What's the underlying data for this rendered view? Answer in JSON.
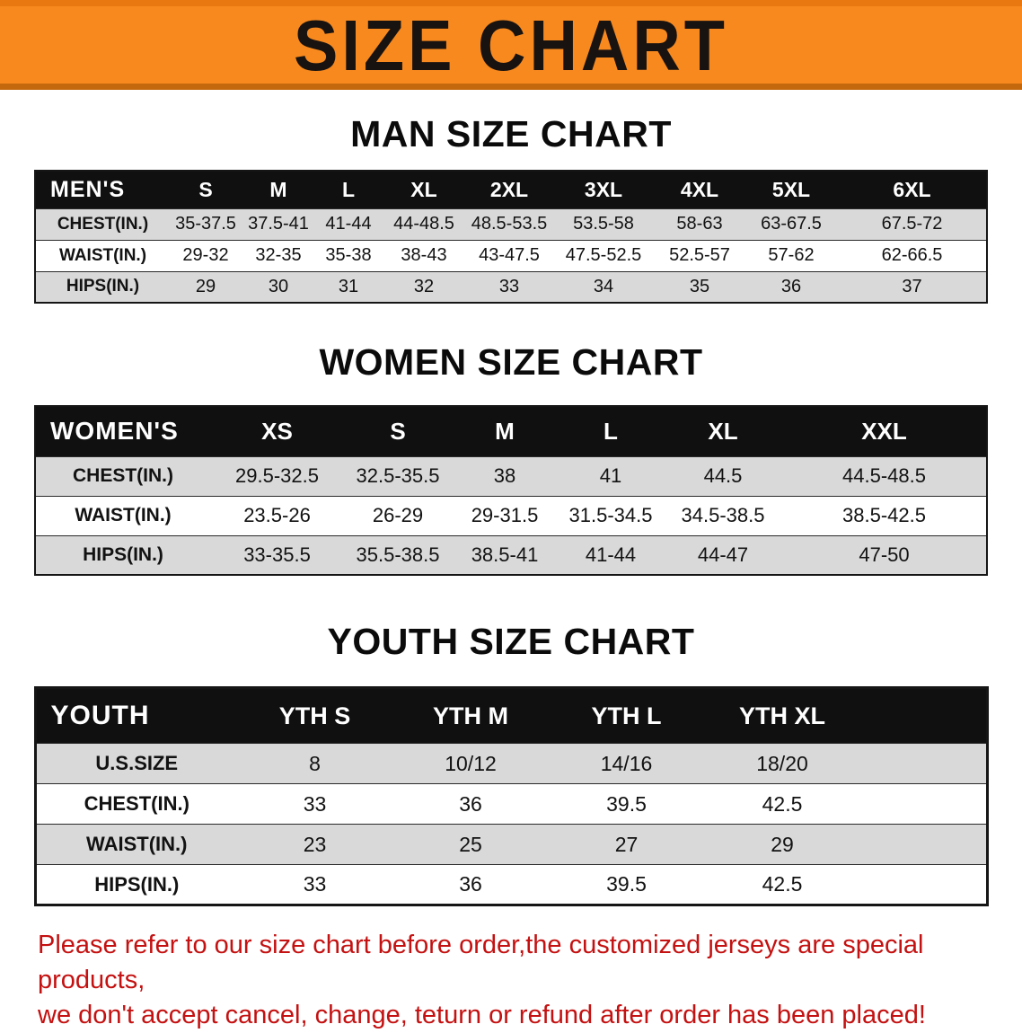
{
  "banner": {
    "title": "SIZE CHART"
  },
  "colors": {
    "banner_bg": "#f7891f",
    "banner_edge_top": "#e8780f",
    "banner_edge_bottom": "#c4680d",
    "table_header_bg": "#101010",
    "row_shade": "#d9d9d9",
    "disclaimer_red": "#c41111"
  },
  "chart_data": [
    {
      "type": "table",
      "title": "MAN SIZE CHART",
      "columns": [
        "MEN'S",
        "S",
        "M",
        "L",
        "XL",
        "2XL",
        "3XL",
        "4XL",
        "5XL",
        "6XL"
      ],
      "rows": [
        [
          "CHEST(IN.)",
          "35-37.5",
          "37.5-41",
          "41-44",
          "44-48.5",
          "48.5-53.5",
          "53.5-58",
          "58-63",
          "63-67.5",
          "67.5-72"
        ],
        [
          "WAIST(IN.)",
          "29-32",
          "32-35",
          "35-38",
          "38-43",
          "43-47.5",
          "47.5-52.5",
          "52.5-57",
          "57-62",
          "62-66.5"
        ],
        [
          "HIPS(IN.)",
          "29",
          "30",
          "31",
          "32",
          "33",
          "34",
          "35",
          "36",
          "37"
        ]
      ]
    },
    {
      "type": "table",
      "title": "WOMEN SIZE CHART",
      "columns": [
        "WOMEN'S",
        "XS",
        "S",
        "M",
        "L",
        "XL",
        "XXL"
      ],
      "rows": [
        [
          "CHEST(IN.)",
          "29.5-32.5",
          "32.5-35.5",
          "38",
          "41",
          "44.5",
          "44.5-48.5"
        ],
        [
          "WAIST(IN.)",
          "23.5-26",
          "26-29",
          "29-31.5",
          "31.5-34.5",
          "34.5-38.5",
          "38.5-42.5"
        ],
        [
          "HIPS(IN.)",
          "33-35.5",
          "35.5-38.5",
          "38.5-41",
          "41-44",
          "44-47",
          "47-50"
        ]
      ]
    },
    {
      "type": "table",
      "title": "YOUTH SIZE CHART",
      "columns": [
        "YOUTH",
        "YTH S",
        "YTH M",
        "YTH L",
        "YTH XL"
      ],
      "rows": [
        [
          "U.S.SIZE",
          "8",
          "10/12",
          "14/16",
          "18/20"
        ],
        [
          "CHEST(IN.)",
          "33",
          "36",
          "39.5",
          "42.5"
        ],
        [
          "WAIST(IN.)",
          "23",
          "25",
          "27",
          "29"
        ],
        [
          "HIPS(IN.)",
          "33",
          "36",
          "39.5",
          "42.5"
        ]
      ]
    }
  ],
  "disclaimer": {
    "line1": "Please refer to our size chart before order,the customized jerseys are special products,",
    "line2": "we don't accept cancel, change, teturn or refund after order has been placed!"
  }
}
